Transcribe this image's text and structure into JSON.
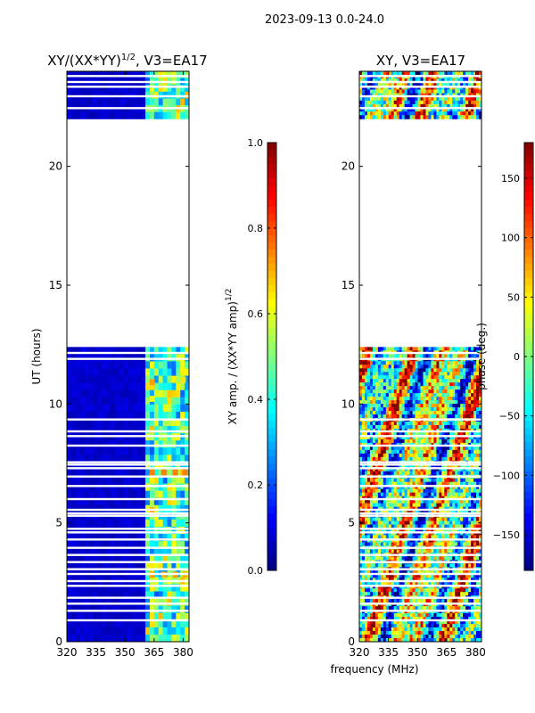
{
  "suptitle": "2023-09-13 0.0-24.0",
  "shared_xlabel": "frequency (MHz)",
  "chart_data": [
    {
      "type": "heatmap",
      "title": "XY/(XX*YY)^{1/2}, V3=EA17",
      "title_main": "XY/(XX*YY)",
      "title_sup": "1/2",
      "title_tail": ", V3=EA17",
      "xlabel": "frequency (MHz)",
      "ylabel": "UT (hours)",
      "xlim": [
        320,
        383
      ],
      "ylim": [
        0,
        24
      ],
      "xticks": [
        320,
        335,
        350,
        365,
        380
      ],
      "yticks": [
        0,
        5,
        10,
        15,
        20
      ],
      "colorbar": {
        "label": "XY amp. / (XX*YY amp)^{1/2}",
        "label_main": "XY amp. / (XX*YY amp)",
        "label_sup": "1/2",
        "range": [
          0.0,
          1.0
        ],
        "ticks": [
          "0.0",
          "0.2",
          "0.4",
          "0.6",
          "0.8",
          "1.0"
        ],
        "tick_values": [
          0.0,
          0.2,
          0.4,
          0.6,
          0.8,
          1.0
        ]
      },
      "data_blocks_ut": [
        [
          0.0,
          12.4
        ],
        [
          22.0,
          24.0
        ]
      ],
      "background_level": 0.05,
      "active_band_mhz": [
        360,
        383
      ],
      "active_level_range": [
        0.25,
        0.75
      ],
      "flagged_rows_ut": [
        0.9,
        1.3,
        1.6,
        1.85,
        2.35,
        2.55,
        2.85,
        3.05,
        3.35,
        3.65,
        3.95,
        4.3,
        4.6,
        4.75,
        5.3,
        5.4,
        5.55,
        6.0,
        6.55,
        6.95,
        7.3,
        7.45,
        7.55,
        8.25,
        8.65,
        8.85,
        9.35,
        11.9,
        12.15,
        22.45,
        22.95,
        23.35,
        23.55,
        23.8
      ],
      "hot_spots": [
        {
          "ut": 2.8,
          "mhz": 364,
          "level": 0.72
        },
        {
          "ut": 2.8,
          "mhz": 370,
          "level": 0.7
        },
        {
          "ut": 2.8,
          "mhz": 376,
          "level": 0.72
        },
        {
          "ut": 2.8,
          "mhz": 381,
          "level": 0.7
        },
        {
          "ut": 5.5,
          "mhz": 364,
          "level": 0.72
        },
        {
          "ut": 7.1,
          "mhz": 364,
          "level": 0.75
        },
        {
          "ut": 7.1,
          "mhz": 370,
          "level": 0.75
        },
        {
          "ut": 7.1,
          "mhz": 376,
          "level": 0.75
        },
        {
          "ut": 7.1,
          "mhz": 381,
          "level": 0.75
        },
        {
          "ut": 10.9,
          "mhz": 364,
          "level": 0.72
        },
        {
          "ut": 11.0,
          "mhz": 380,
          "level": 0.65
        },
        {
          "ut": 10.2,
          "mhz": 364,
          "level": 0.6
        }
      ]
    },
    {
      "type": "heatmap",
      "title": "XY, V3=EA17",
      "xlabel": "frequency (MHz)",
      "ylabel": "",
      "xlim": [
        320,
        383
      ],
      "ylim": [
        0,
        24
      ],
      "xticks": [
        320,
        335,
        350,
        365,
        380
      ],
      "yticks": [
        0,
        5,
        10,
        15,
        20
      ],
      "colorbar": {
        "label": "phase (deg.)",
        "range": [
          -180,
          180
        ],
        "ticks": [
          "−150",
          "−100",
          "−50",
          "0",
          "50",
          "100",
          "150"
        ],
        "tick_values": [
          -150,
          -100,
          -50,
          0,
          50,
          100,
          150
        ]
      },
      "data_blocks_ut": [
        [
          0.0,
          12.4
        ],
        [
          22.0,
          24.0
        ]
      ],
      "flagged_rows_ut": [
        0.9,
        1.3,
        1.6,
        1.85,
        2.35,
        2.55,
        2.85,
        3.05,
        3.35,
        3.65,
        3.95,
        4.3,
        4.6,
        4.75,
        5.3,
        5.4,
        5.55,
        6.0,
        6.55,
        6.95,
        7.3,
        7.45,
        7.55,
        8.25,
        8.65,
        8.85,
        9.35,
        11.9,
        12.15,
        22.45,
        22.95,
        23.35,
        23.55,
        23.8
      ]
    }
  ]
}
